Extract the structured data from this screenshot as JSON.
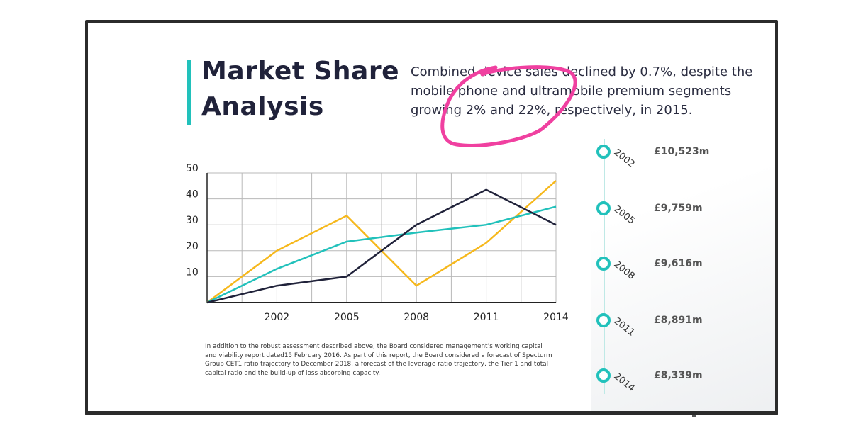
{
  "slide": {
    "title_line1": "Market Share",
    "title_line2": "Analysis",
    "description": "Combined device sales declined by 0.7%, despite the mobile phone and ultramobile premium segments growing 2% and 22%, respectively, in 2015.",
    "note": "In addition to the robust assessment described above, the Board considered management’s working capital and viability report dated15 February 2016. As part of this report, the Board considered a forecast of Specturm Group CET1 ratio trajectory to December 2018, a forecast of the leverage ratio trajectory, the Tier 1 and total capital ratio and the build-up of loss absorbing capacity."
  },
  "timeline": [
    {
      "year": "2002",
      "value": "£10,523m"
    },
    {
      "year": "2005",
      "value": "£9,759m"
    },
    {
      "year": "2008",
      "value": "£9,616m"
    },
    {
      "year": "2011",
      "value": "£8,891m"
    },
    {
      "year": "2014",
      "value": "£8,339m"
    }
  ],
  "chart_data": {
    "type": "line",
    "x": [
      1999,
      2002,
      2005,
      2008,
      2011,
      2014
    ],
    "x_tick_labels": [
      "2002",
      "2005",
      "2008",
      "2011",
      "2014"
    ],
    "y_tick_labels": [
      "10",
      "20",
      "30",
      "40",
      "50"
    ],
    "ylim": [
      0,
      50
    ],
    "xlim": [
      1999,
      2014
    ],
    "grid": true,
    "series": [
      {
        "values": [
          0,
          20,
          33.5,
          6.5,
          23,
          47
        ],
        "color": "#f6b81c"
      },
      {
        "values": [
          0,
          13,
          23.5,
          27,
          30,
          37
        ],
        "color": "#21c1bb"
      },
      {
        "values": [
          0,
          6.5,
          10,
          30,
          43.5,
          30
        ],
        "color": "#20223a"
      }
    ]
  },
  "colors": {
    "accent": "#21c1bb",
    "title": "#20223a",
    "highlight": "#f040a0",
    "grid": "#b8b8b8"
  }
}
